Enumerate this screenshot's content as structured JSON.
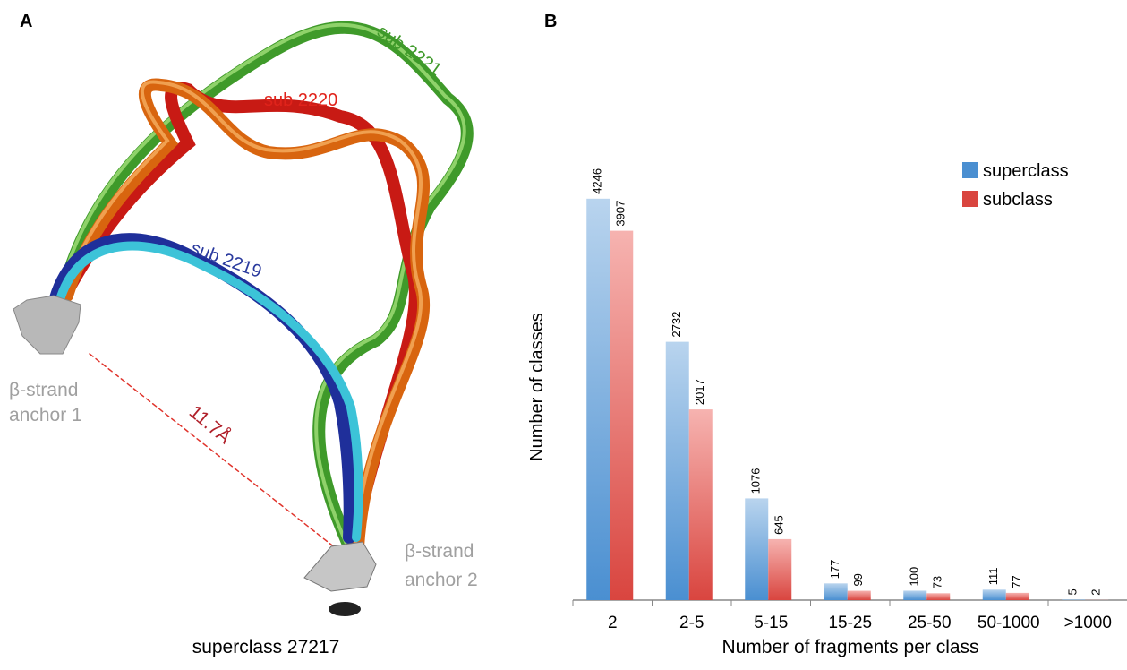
{
  "panel_a": {
    "label": "A",
    "caption": "superclass 27217",
    "annotations": {
      "sub_2221": "sub 2221",
      "sub_2220": "sub 2220",
      "sub_2219": "sub 2219",
      "anchor1_line1": "β-strand",
      "anchor1_line2": "anchor 1",
      "anchor2_line1": "β-strand",
      "anchor2_line2": "anchor 2",
      "distance": "11.7Å"
    }
  },
  "chart_data": {
    "type": "bar",
    "panel_label": "B",
    "x_label": "Number of fragments per class",
    "y_label": "Number of classes",
    "categories": [
      "2",
      "2-5",
      "5-15",
      "15-25",
      "25-50",
      "50-1000",
      ">1000"
    ],
    "series": [
      {
        "name": "superclass",
        "color": "#4a8fd1",
        "values": [
          4246,
          2732,
          1076,
          177,
          100,
          111,
          5
        ]
      },
      {
        "name": "subclass",
        "color": "#d9453f",
        "values": [
          3907,
          2017,
          645,
          99,
          73,
          77,
          2
        ]
      }
    ],
    "ylim": [
      0,
      4500
    ],
    "legend": "upper-right"
  }
}
